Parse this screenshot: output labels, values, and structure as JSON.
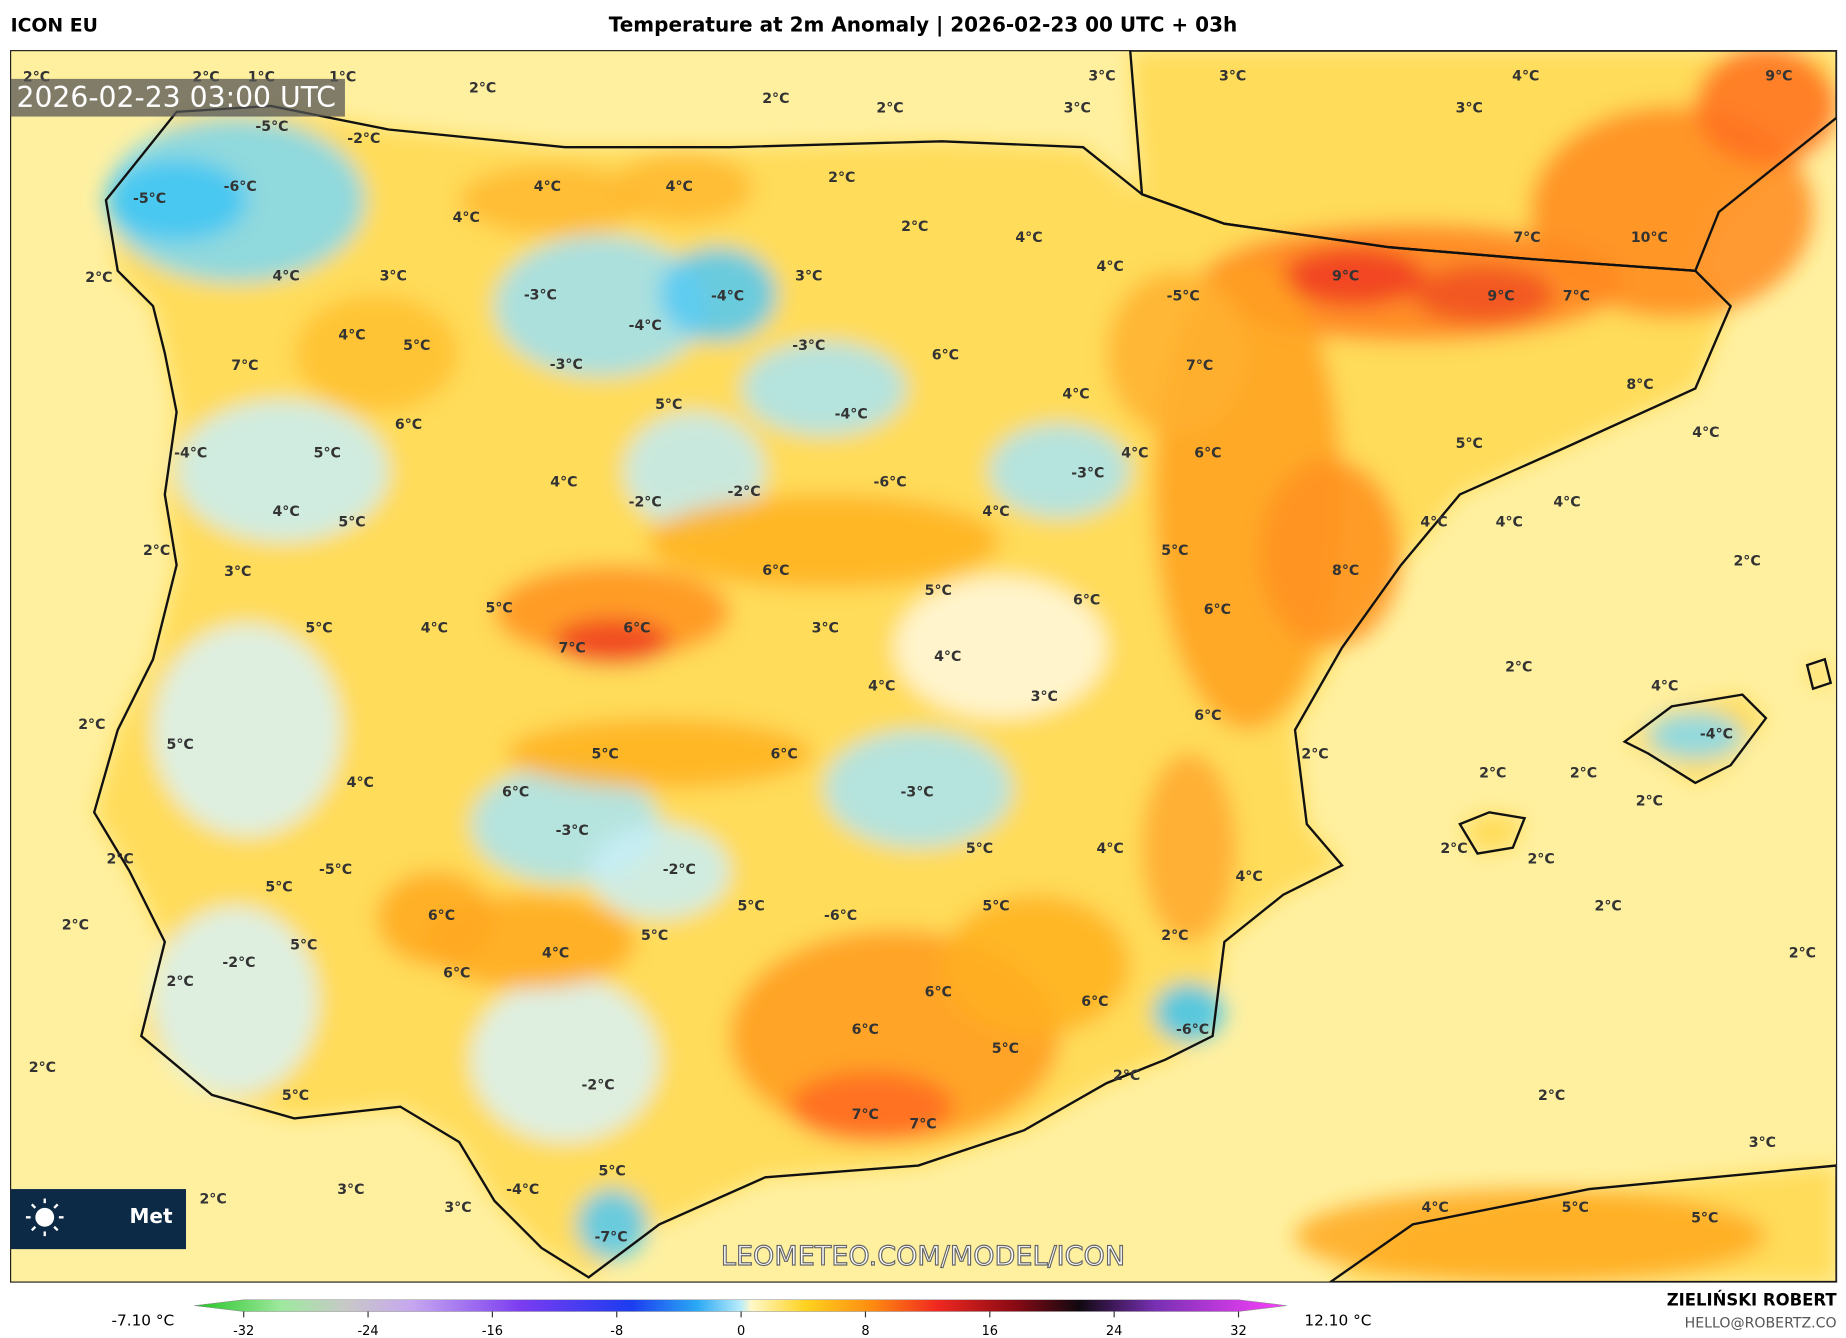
{
  "header": {
    "model": "ICON EU",
    "title": "Temperature at 2m Anomaly | 2026-02-23 00 UTC + 03h"
  },
  "map": {
    "timestamp": "2026-02-23 03:00 UTC",
    "watermark": "LEOMETEO.COM/MODEL/ICON",
    "logo_text": "Met",
    "labels": [
      "2°C",
      "2°C",
      "1°C",
      "1°C",
      "2°C",
      "2°C",
      "2°C",
      "3°C",
      "3°C",
      "3°C",
      "4°C",
      "3°C",
      "9°C",
      "-5°C",
      "-2°C",
      "-6°C",
      "-5°C",
      "4°C",
      "4°C",
      "2°C",
      "4°C",
      "2°C",
      "4°C",
      "7°C",
      "10°C",
      "2°C",
      "4°C",
      "3°C",
      "-3°C",
      "-4°C",
      "3°C",
      "4°C",
      "9°C",
      "-5°C",
      "9°C",
      "7°C",
      "-4°C",
      "4°C",
      "5°C",
      "-3°C",
      "6°C",
      "7°C",
      "-3°C",
      "7°C",
      "8°C",
      "5°C",
      "4°C",
      "-4°C",
      "6°C",
      "-4°C",
      "5°C",
      "4°C",
      "6°C",
      "5°C",
      "4°C",
      "-3°C",
      "4°C",
      "-6°C",
      "-2°C",
      "-2°C",
      "4°C",
      "4°C",
      "4°C",
      "5°C",
      "4°C",
      "4°C",
      "2°C",
      "5°C",
      "2°C",
      "3°C",
      "6°C",
      "8°C",
      "5°C",
      "6°C",
      "5°C",
      "6°C",
      "4°C",
      "6°C",
      "3°C",
      "5°C",
      "7°C",
      "4°C",
      "2°C",
      "4°C",
      "3°C",
      "4°C",
      "6°C",
      "2°C",
      "5°C",
      "5°C",
      "6°C",
      "-4°C",
      "2°C",
      "2°C",
      "2°C",
      "4°C",
      "6°C",
      "-3°C",
      "2°C",
      "-3°C",
      "5°C",
      "4°C",
      "2°C",
      "2°C",
      "2°C",
      "-2°C",
      "-5°C",
      "4°C",
      "5°C",
      "5°C",
      "-6°C",
      "5°C",
      "2°C",
      "6°C",
      "2°C",
      "5°C",
      "2°C",
      "5°C",
      "4°C",
      "2°C",
      "-2°C",
      "6°C",
      "2°C",
      "6°C",
      "6°C",
      "-6°C",
      "6°C",
      "5°C",
      "2°C",
      "-2°C",
      "2°C",
      "5°C",
      "2°C",
      "7°C",
      "7°C",
      "3°C",
      "5°C",
      "3°C",
      "-4°C",
      "2°C",
      "3°C",
      "4°C",
      "5°C",
      "5°C",
      "-7°C"
    ]
  },
  "colorbar": {
    "min_label": "-7.10 °C",
    "max_label": "12.10 °C",
    "ticks": [
      -32,
      -24,
      -16,
      -8,
      0,
      8,
      16,
      24,
      32
    ]
  },
  "footer": {
    "author": "ZIELIŃSKI ROBERT",
    "email": "HELLO@ROBERTZ.CO"
  }
}
